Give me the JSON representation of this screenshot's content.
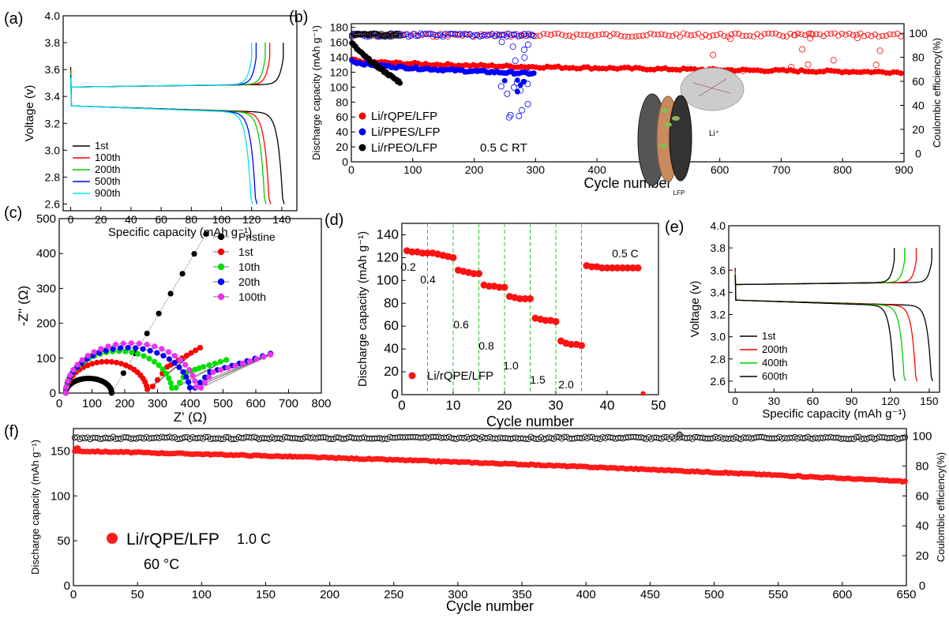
{
  "chart_data": [
    {
      "panel": "(a)",
      "type": "line",
      "xlabel": "Specific capacity (mAh g⁻¹)",
      "ylabel": "Voltage (v)",
      "xlim": [
        -5,
        150
      ],
      "ylim": [
        2.55,
        4.0
      ],
      "xticks": [
        "0",
        "20",
        "40",
        "60",
        "80",
        "100",
        "120",
        "140"
      ],
      "yticks": [
        "2.6",
        "2.8",
        "3.0",
        "3.2",
        "3.4",
        "3.6",
        "3.8",
        "4.0"
      ],
      "legend": "bottom-left",
      "series": [
        {
          "name": "1st",
          "color": "#000000",
          "capacity": 141
        },
        {
          "name": "100th",
          "color": "#ff0000",
          "capacity": 132
        },
        {
          "name": "200th",
          "color": "#00cc00",
          "capacity": 129
        },
        {
          "name": "500th",
          "color": "#0000ff",
          "capacity": 123
        },
        {
          "name": "900th",
          "color": "#00e5ee",
          "capacity": 120
        }
      ]
    },
    {
      "panel": "(b)",
      "type": "scatter",
      "xlabel": "Cycle number",
      "ylabel": "Discharge capacity (mAh g⁻¹)",
      "y2label": "Coulombic efficiency(%)",
      "xlim": [
        0,
        900
      ],
      "ylim": [
        0,
        185
      ],
      "y2lim": [
        -7,
        108
      ],
      "xticks": [
        "0",
        "100",
        "200",
        "300",
        "400",
        "500",
        "600",
        "700",
        "800",
        "900"
      ],
      "yticks": [
        "0",
        "20",
        "40",
        "60",
        "80",
        "100",
        "120",
        "140",
        "160",
        "180"
      ],
      "y2ticks": [
        "0",
        "20",
        "40",
        "60",
        "80",
        "100"
      ],
      "condition": "0.5 C RT",
      "inset_labels": [
        "Li⁺",
        "LFP"
      ],
      "series": [
        {
          "name": "Li/rQPE/LFP",
          "color": "#ff0000",
          "cycles": 900,
          "capacity_start": 137,
          "capacity_end": 120,
          "ce": 100
        },
        {
          "name": "Li/PPES/LFP",
          "color": "#0000ff",
          "cycles": 300,
          "capacity_start": 136,
          "capacity_end": 118,
          "ce": 100
        },
        {
          "name": "Li/rPEO/LFP",
          "color": "#000000",
          "cycles": 80,
          "capacity_start": 160,
          "capacity_end": 106,
          "ce": 100
        }
      ]
    },
    {
      "panel": "(c)",
      "type": "scatter",
      "xlabel": "Z' (Ω)",
      "ylabel": "-Z'' (Ω)",
      "xlim": [
        0,
        800
      ],
      "ylim": [
        0,
        500
      ],
      "xticks": [
        "0",
        "100",
        "200",
        "300",
        "400",
        "500",
        "600",
        "700",
        "800"
      ],
      "yticks": [
        "0",
        "100",
        "200",
        "300",
        "400",
        "500"
      ],
      "legend": "top-right",
      "series": [
        {
          "name": "Pristine",
          "color": "#000000",
          "semicircle": [
            20,
            160,
            42
          ]
        },
        {
          "name": "1st",
          "color": "#ff0000",
          "semicircle": [
            20,
            270,
            90
          ]
        },
        {
          "name": "10th",
          "color": "#00e000",
          "semicircle": [
            20,
            345,
            120
          ]
        },
        {
          "name": "20th",
          "color": "#0000ff",
          "semicircle": [
            20,
            400,
            130
          ]
        },
        {
          "name": "100th",
          "color": "#ee33ee",
          "semicircle": [
            20,
            420,
            143
          ]
        }
      ]
    },
    {
      "panel": "(d)",
      "type": "scatter",
      "xlabel": "Cycle number",
      "ylabel": "Discharge capacity (mAh g⁻¹)",
      "xlim": [
        0,
        50
      ],
      "ylim": [
        0,
        150
      ],
      "xticks": [
        "0",
        "10",
        "20",
        "30",
        "40",
        "50"
      ],
      "yticks": [
        "0",
        "20",
        "40",
        "60",
        "80",
        "100",
        "120",
        "140"
      ],
      "legend": "Li/rQPE/LFP",
      "rates": [
        {
          "label": "0.2",
          "x": [
            1,
            2,
            3,
            4,
            5
          ],
          "y": [
            126,
            125,
            125,
            124,
            124
          ]
        },
        {
          "label": "0.4",
          "x": [
            6,
            7,
            8,
            9,
            10
          ],
          "y": [
            124,
            123,
            122,
            121,
            120
          ]
        },
        {
          "label": "0.6",
          "x": [
            11,
            12,
            13,
            14,
            15
          ],
          "y": [
            109,
            108,
            107,
            106,
            106
          ]
        },
        {
          "label": "0.8",
          "x": [
            16,
            17,
            18,
            19,
            20
          ],
          "y": [
            96,
            95,
            95,
            94,
            94
          ]
        },
        {
          "label": "1.0",
          "x": [
            21,
            22,
            23,
            24,
            25
          ],
          "y": [
            86,
            85,
            84,
            84,
            84
          ]
        },
        {
          "label": "1.5",
          "x": [
            26,
            27,
            28,
            29,
            30
          ],
          "y": [
            67,
            66,
            65,
            65,
            64
          ]
        },
        {
          "label": "2.0",
          "x": [
            31,
            32,
            33,
            34,
            35
          ],
          "y": [
            47,
            45,
            44,
            44,
            43
          ]
        },
        {
          "label": "0.5 C",
          "x": [
            36,
            37,
            38,
            39,
            40,
            41,
            42,
            43,
            44,
            45,
            46
          ],
          "y": [
            113,
            112,
            112,
            111,
            111,
            111,
            111,
            111,
            111,
            111,
            111
          ]
        }
      ],
      "extra_point": [
        47,
        1
      ]
    },
    {
      "panel": "(e)",
      "type": "line",
      "xlabel": "Specific capacity (mAh g⁻¹)",
      "ylabel": "Voltage (v)",
      "xlim": [
        -5,
        158
      ],
      "ylim": [
        2.5,
        4.0
      ],
      "xticks": [
        "0",
        "30",
        "60",
        "90",
        "120",
        "150"
      ],
      "yticks": [
        "2.6",
        "2.8",
        "3.0",
        "3.2",
        "3.4",
        "3.6",
        "3.8",
        "4.0"
      ],
      "legend": "bottom-left",
      "series": [
        {
          "name": "1st",
          "color": "#000000",
          "capacity": 152
        },
        {
          "name": "200th",
          "color": "#ff0000",
          "capacity": 140
        },
        {
          "name": "400th",
          "color": "#00cc00",
          "capacity": 131
        },
        {
          "name": "600th",
          "color": "#000000",
          "capacity": 123
        }
      ]
    },
    {
      "panel": "(f)",
      "type": "scatter",
      "xlabel": "Cycle number",
      "ylabel": "Discharge capacity (mAh g⁻¹)",
      "y2label": "Coulombic efficiency(%)",
      "xlim": [
        0,
        650
      ],
      "ylim": [
        0,
        175
      ],
      "y2lim": [
        0,
        105
      ],
      "xticks": [
        "0",
        "50",
        "100",
        "150",
        "200",
        "250",
        "300",
        "350",
        "400",
        "450",
        "500",
        "550",
        "600",
        "650"
      ],
      "yticks": [
        "0",
        "50",
        "100",
        "150"
      ],
      "y2ticks": [
        "0",
        "20",
        "40",
        "60",
        "80",
        "100"
      ],
      "legend_name": "Li/rQPE/LFP",
      "rate": "1.0 C",
      "temperature": "60 °C",
      "capacity_start": 150,
      "capacity_end": 116,
      "ce": 99.5
    }
  ]
}
